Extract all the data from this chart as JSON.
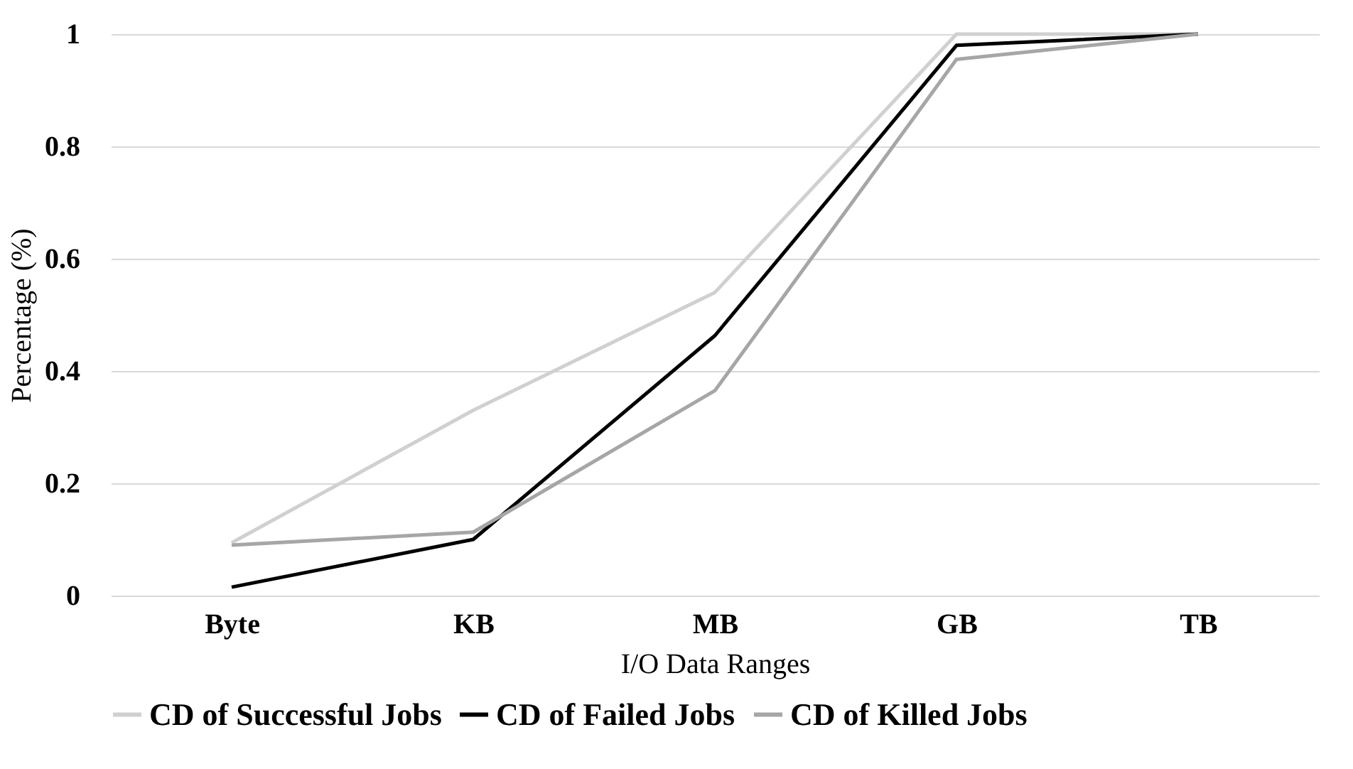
{
  "chart_data": {
    "type": "line",
    "xlabel": "I/O Data Ranges",
    "ylabel": "Percentage (%)",
    "categories": [
      "Byte",
      "KB",
      "MB",
      "GB",
      "TB"
    ],
    "series": [
      {
        "name": "CD of Successful Jobs",
        "color": "#d0d0d0",
        "values": [
          0.094,
          0.33,
          0.54,
          1.0,
          1.0
        ]
      },
      {
        "name": "CD of Failed Jobs",
        "color": "#000000",
        "values": [
          0.015,
          0.1,
          0.463,
          0.98,
          1.0
        ]
      },
      {
        "name": "CD of Killed Jobs",
        "color": "#a6a6a6",
        "values": [
          0.09,
          0.113,
          0.365,
          0.955,
          1.0
        ]
      }
    ],
    "ylim": [
      0,
      1
    ],
    "yticks": [
      0,
      0.2,
      0.4,
      0.6,
      0.8,
      1
    ],
    "grid": "y",
    "legend": "bottom",
    "marker": "none",
    "line_style": "solid"
  }
}
